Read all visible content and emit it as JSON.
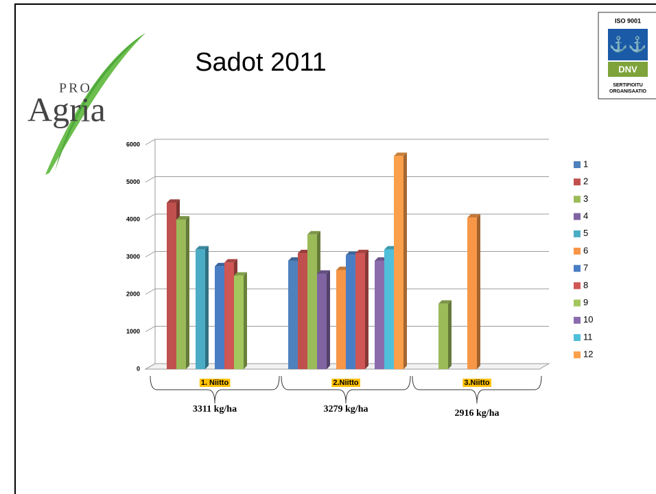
{
  "chart_data": {
    "type": "bar3d",
    "title": "Sadot 2011",
    "categories": [
      "1. Niitto",
      "2.Niitto",
      "3.Niitto"
    ],
    "series": [
      {
        "name": "1",
        "color": "#4f81bd",
        "values": [
          null,
          2900,
          null
        ]
      },
      {
        "name": "2",
        "color": "#c0504d",
        "values": [
          4450,
          3100,
          null
        ]
      },
      {
        "name": "3",
        "color": "#9bbb59",
        "values": [
          4000,
          3600,
          1750
        ]
      },
      {
        "name": "4",
        "color": "#8064a2",
        "values": [
          null,
          2550,
          null
        ]
      },
      {
        "name": "5",
        "color": "#4bacc6",
        "values": [
          3200,
          null,
          null
        ]
      },
      {
        "name": "6",
        "color": "#f79646",
        "values": [
          null,
          2650,
          4050
        ]
      },
      {
        "name": "7",
        "color": "#4a7ec4",
        "values": [
          2750,
          3050,
          null
        ]
      },
      {
        "name": "8",
        "color": "#cf5654",
        "values": [
          2850,
          3100,
          null
        ]
      },
      {
        "name": "9",
        "color": "#a3c75e",
        "values": [
          2500,
          null,
          null
        ]
      },
      {
        "name": "10",
        "color": "#8a6cad",
        "values": [
          null,
          2900,
          null
        ]
      },
      {
        "name": "11",
        "color": "#4fbfdb",
        "values": [
          null,
          3200,
          null
        ]
      },
      {
        "name": "12",
        "color": "#fa9f4a",
        "values": [
          null,
          5700,
          null
        ]
      }
    ],
    "ylim": [
      0,
      6000
    ],
    "yticks": [
      0,
      1000,
      2000,
      3000,
      4000,
      5000,
      6000
    ],
    "grid": true,
    "annotations": [
      "3311 kg/ha",
      "3279 kg/ha",
      "2916 kg/ha"
    ]
  },
  "logo": {
    "small": "PRO",
    "large": "Agria"
  },
  "badge": {
    "top": "ISO 9001",
    "mark": "DNV",
    "line1": "SERTIFIOITU",
    "line2": "ORGANISAATIO"
  }
}
